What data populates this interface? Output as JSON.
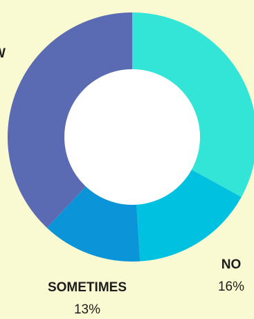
{
  "chart_data": {
    "type": "pie",
    "style": "donut",
    "start_angle_deg": 0,
    "direction": "clockwise",
    "slices": [
      {
        "label": "",
        "value": 33,
        "value_label": "",
        "color": "#33e5d6"
      },
      {
        "label": "NO",
        "value": 16,
        "value_label": "16%",
        "color": "#00c2e0"
      },
      {
        "label": "SOMETIMES",
        "value": 13,
        "value_label": "13%",
        "color": "#0b95d8"
      },
      {
        "label": "",
        "value": 38,
        "value_label": "",
        "color": "#5b6bb3"
      }
    ],
    "partial_labels": [
      {
        "text": "W",
        "attached_to_slice": 3
      }
    ],
    "legend": "none"
  },
  "colors": {
    "background": "#fafad2",
    "hole": "#ffffff",
    "label_text": "#1c1c1c"
  }
}
